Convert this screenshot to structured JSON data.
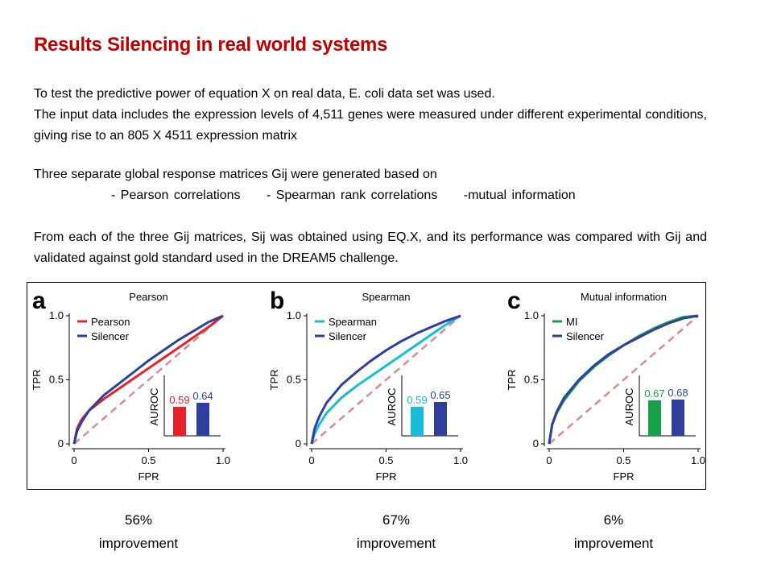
{
  "slide": {
    "title": "Results Silencing in real world systems",
    "para1_line1": "To test the predictive power of equation X on real data, E. coli data set was used.",
    "para1_line2": "The input data includes the expression levels of 4,511 genes were measured under different experimental conditions, giving rise to an 805 X 4511 expression matrix",
    "para2_line1": "Three separate global response matrices Gij were generated based on",
    "para2_items": [
      "- Pearson correlations",
      "- Spearman rank correlations",
      "-mutual information"
    ],
    "para3": "From each of the three Gij matrices, Sij was obtained using EQ.X, and its performance was compared with Gij and validated against gold standard used in the DREAM5 challenge."
  },
  "improvements": [
    {
      "percent": "56%",
      "label": "improvement"
    },
    {
      "percent": "67%",
      "label": "improvement"
    },
    {
      "percent": "6%",
      "label": "improvement"
    }
  ],
  "colors": {
    "title": "#c00000",
    "pearson": "#e8202a",
    "spearman": "#17bcd8",
    "mi": "#16a34a",
    "silencer": "#2e3f9e",
    "diagonal": "#d98c8c"
  },
  "chart_data": [
    {
      "type": "line",
      "panel_letter": "a",
      "title": "Pearson",
      "xlabel": "FPR",
      "ylabel": "TPR",
      "xlim": [
        0,
        1
      ],
      "ylim": [
        0,
        1
      ],
      "x_ticks": [
        "0",
        "0.5",
        "1.0"
      ],
      "y_ticks": [
        "0",
        "0.5",
        "1.0"
      ],
      "legend_position": "top-left",
      "series": [
        {
          "name": "Pearson",
          "color": "#e8202a",
          "x": [
            0,
            0.02,
            0.05,
            0.1,
            0.2,
            0.3,
            0.4,
            0.5,
            0.6,
            0.7,
            0.8,
            0.9,
            1.0
          ],
          "y": [
            0,
            0.12,
            0.19,
            0.26,
            0.35,
            0.43,
            0.51,
            0.59,
            0.67,
            0.75,
            0.83,
            0.91,
            1.0
          ]
        },
        {
          "name": "Silencer",
          "color": "#2e3f9e",
          "x": [
            0,
            0.02,
            0.05,
            0.1,
            0.2,
            0.3,
            0.4,
            0.5,
            0.6,
            0.7,
            0.8,
            0.9,
            1.0
          ],
          "y": [
            0,
            0.1,
            0.17,
            0.26,
            0.38,
            0.47,
            0.56,
            0.65,
            0.73,
            0.81,
            0.88,
            0.95,
            1.0
          ]
        }
      ],
      "inset": {
        "type": "bar",
        "ylabel": "AUROC",
        "categories": [
          "Pearson",
          "Silencer"
        ],
        "values": [
          0.59,
          0.64
        ],
        "labels": [
          "0.59",
          "0.64"
        ]
      }
    },
    {
      "type": "line",
      "panel_letter": "b",
      "title": "Spearman",
      "xlabel": "FPR",
      "ylabel": "TPR",
      "xlim": [
        0,
        1
      ],
      "ylim": [
        0,
        1
      ],
      "x_ticks": [
        "0",
        "0.5",
        "1.0"
      ],
      "y_ticks": [
        "0",
        "0.5",
        "1.0"
      ],
      "legend_position": "top-left",
      "series": [
        {
          "name": "Spearman",
          "color": "#17bcd8",
          "x": [
            0,
            0.02,
            0.05,
            0.1,
            0.2,
            0.3,
            0.4,
            0.5,
            0.6,
            0.7,
            0.8,
            0.9,
            1.0
          ],
          "y": [
            0,
            0.08,
            0.15,
            0.24,
            0.36,
            0.45,
            0.53,
            0.61,
            0.69,
            0.77,
            0.85,
            0.93,
            1.0
          ]
        },
        {
          "name": "Silencer",
          "color": "#2e3f9e",
          "x": [
            0,
            0.02,
            0.05,
            0.1,
            0.2,
            0.3,
            0.4,
            0.5,
            0.6,
            0.7,
            0.8,
            0.9,
            1.0
          ],
          "y": [
            0,
            0.12,
            0.21,
            0.32,
            0.46,
            0.56,
            0.65,
            0.73,
            0.8,
            0.86,
            0.91,
            0.96,
            1.0
          ]
        }
      ],
      "inset": {
        "type": "bar",
        "ylabel": "AUROC",
        "categories": [
          "Spearman",
          "Silencer"
        ],
        "values": [
          0.59,
          0.65
        ],
        "labels": [
          "0.59",
          "0.65"
        ]
      }
    },
    {
      "type": "line",
      "panel_letter": "c",
      "title": "Mutual information",
      "xlabel": "FPR",
      "ylabel": "TPR",
      "xlim": [
        0,
        1
      ],
      "ylim": [
        0,
        1
      ],
      "x_ticks": [
        "0",
        "0.5",
        "1.0"
      ],
      "y_ticks": [
        "0",
        "0.5",
        "1.0"
      ],
      "legend_position": "top-left",
      "series": [
        {
          "name": "MI",
          "color": "#16a34a",
          "x": [
            0,
            0.02,
            0.05,
            0.1,
            0.2,
            0.3,
            0.4,
            0.5,
            0.6,
            0.7,
            0.8,
            0.9,
            1.0
          ],
          "y": [
            0,
            0.15,
            0.24,
            0.34,
            0.49,
            0.6,
            0.69,
            0.77,
            0.84,
            0.9,
            0.95,
            0.99,
            1.0
          ]
        },
        {
          "name": "Silencer",
          "color": "#2e3f9e",
          "x": [
            0,
            0.02,
            0.05,
            0.1,
            0.2,
            0.3,
            0.4,
            0.5,
            0.6,
            0.7,
            0.8,
            0.9,
            1.0
          ],
          "y": [
            0,
            0.15,
            0.25,
            0.36,
            0.5,
            0.61,
            0.7,
            0.77,
            0.83,
            0.89,
            0.94,
            0.98,
            1.0
          ]
        }
      ],
      "inset": {
        "type": "bar",
        "ylabel": "AUROC",
        "categories": [
          "MI",
          "Silencer"
        ],
        "values": [
          0.67,
          0.68
        ],
        "labels": [
          "0.67",
          "0.68"
        ]
      }
    }
  ]
}
